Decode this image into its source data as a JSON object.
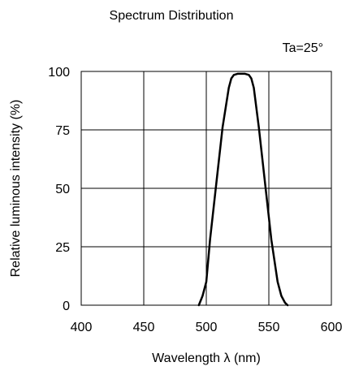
{
  "chart_data": {
    "type": "line",
    "title": "Spectrum Distribution",
    "annotation": "Ta=25°",
    "xlabel": "Wavelength  λ (nm)",
    "ylabel": "Relative luminous intensity  (%)",
    "xlim": [
      400,
      600
    ],
    "ylim": [
      0,
      100
    ],
    "xticks": [
      400,
      450,
      500,
      550,
      600
    ],
    "yticks": [
      0,
      25,
      50,
      75,
      100
    ],
    "grid": true,
    "colors": {
      "line": "#000000",
      "grid": "#000000",
      "background": "#ffffff"
    },
    "series": [
      {
        "x": [
          494,
          497,
          500,
          503,
          508,
          513,
          518,
          520,
          522,
          525,
          528,
          531,
          534,
          536,
          538,
          542,
          547,
          552,
          557,
          560,
          563,
          565
        ],
        "y": [
          0,
          4,
          10,
          28,
          52,
          76,
          93,
          97,
          98.5,
          99,
          99,
          99,
          98.5,
          97,
          93,
          76,
          52,
          28,
          10,
          4,
          1,
          0
        ]
      }
    ]
  }
}
